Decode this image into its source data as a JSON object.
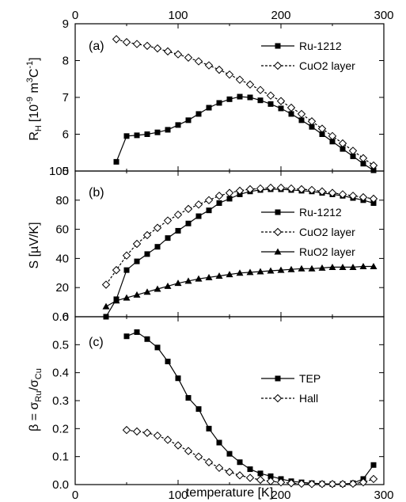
{
  "chart_data": [
    {
      "type": "line",
      "panel_label": "(a)",
      "ylabel": "R_H [10^-9 m^3 C^-1]",
      "ylabel_parts": {
        "main": "R",
        "sub": "H",
        "bracket": "[10",
        "exp1": "-9",
        "mid": " m",
        "exp2": "3",
        "c": "C",
        "exp3": "-1",
        "close": "]"
      },
      "xlim": [
        0,
        300
      ],
      "ylim": [
        5,
        9
      ],
      "yticks": [
        "9",
        "8",
        "7",
        "6",
        "5"
      ],
      "top_xticks": [
        "0",
        "100",
        "200",
        "300"
      ],
      "legend_position": "top-right",
      "series": [
        {
          "name": "Ru-1212",
          "marker": "filled-square",
          "dash": "solid",
          "x": [
            40,
            50,
            60,
            70,
            80,
            90,
            100,
            110,
            120,
            130,
            140,
            150,
            160,
            170,
            180,
            190,
            200,
            210,
            220,
            230,
            240,
            250,
            260,
            270,
            280,
            290
          ],
          "y": [
            5.25,
            5.95,
            5.97,
            6.0,
            6.05,
            6.12,
            6.25,
            6.38,
            6.55,
            6.72,
            6.85,
            6.95,
            7.02,
            7.0,
            6.92,
            6.82,
            6.7,
            6.55,
            6.38,
            6.2,
            6.0,
            5.8,
            5.6,
            5.4,
            5.2,
            5.02
          ]
        },
        {
          "name": "CuO2 layer",
          "marker": "open-diamond",
          "dash": "dashed",
          "x": [
            40,
            50,
            60,
            70,
            80,
            90,
            100,
            110,
            120,
            130,
            140,
            150,
            160,
            170,
            180,
            190,
            200,
            210,
            220,
            230,
            240,
            250,
            260,
            270,
            280,
            290
          ],
          "y": [
            8.58,
            8.5,
            8.45,
            8.4,
            8.33,
            8.25,
            8.17,
            8.08,
            7.98,
            7.87,
            7.75,
            7.62,
            7.48,
            7.35,
            7.2,
            7.05,
            6.9,
            6.72,
            6.55,
            6.35,
            6.15,
            5.95,
            5.75,
            5.55,
            5.35,
            5.15
          ]
        }
      ]
    },
    {
      "type": "line",
      "panel_label": "(b)",
      "ylabel": "S [µV/K]",
      "ylabel_parts": {
        "main": "S  [µV/K]"
      },
      "xlim": [
        0,
        300
      ],
      "ylim": [
        0,
        100
      ],
      "yticks": [
        "80",
        "60",
        "40",
        "20",
        "0"
      ],
      "corner_tick_label": "100",
      "legend_position": "right",
      "series": [
        {
          "name": "Ru-1212",
          "marker": "filled-square",
          "dash": "solid",
          "x": [
            30,
            40,
            50,
            60,
            70,
            80,
            90,
            100,
            110,
            120,
            130,
            140,
            150,
            160,
            170,
            180,
            190,
            200,
            210,
            220,
            230,
            240,
            250,
            260,
            270,
            280,
            290
          ],
          "y": [
            0,
            12,
            32,
            38,
            43,
            48,
            54,
            59,
            64,
            69,
            73,
            78,
            81,
            84,
            86,
            87,
            87.5,
            87.5,
            87,
            86.5,
            86,
            85,
            84,
            83,
            81.5,
            80,
            78
          ]
        },
        {
          "name": "CuO2 layer",
          "marker": "open-diamond",
          "dash": "dashed",
          "x": [
            30,
            40,
            50,
            60,
            70,
            80,
            90,
            100,
            110,
            120,
            130,
            140,
            150,
            160,
            170,
            180,
            190,
            200,
            210,
            220,
            230,
            240,
            250,
            260,
            270,
            280,
            290
          ],
          "y": [
            22,
            32,
            42,
            50,
            56,
            61,
            66,
            70,
            74,
            77,
            80,
            83,
            85,
            86.5,
            87.5,
            88,
            88.5,
            88.5,
            88,
            87.5,
            87,
            86,
            85,
            84,
            83,
            82,
            81
          ]
        },
        {
          "name": "RuO2 layer",
          "marker": "filled-triangle",
          "dash": "solid",
          "x": [
            30,
            40,
            50,
            60,
            70,
            80,
            90,
            100,
            110,
            120,
            130,
            140,
            150,
            160,
            170,
            180,
            190,
            200,
            210,
            220,
            230,
            240,
            250,
            260,
            270,
            280,
            290
          ],
          "y": [
            7,
            11,
            13,
            15,
            17,
            19,
            21,
            23,
            24.5,
            26,
            27,
            28,
            29,
            30,
            30.5,
            31,
            31.5,
            32,
            32.5,
            33,
            33,
            33.5,
            34,
            34,
            34,
            34.5,
            34.5
          ]
        }
      ]
    },
    {
      "type": "line",
      "panel_label": "(c)",
      "ylabel": "β = σ_Ru/σ_Cu",
      "ylabel_parts": {
        "beta": "β = σ",
        "sub1": "Ru",
        "slash": "/σ",
        "sub2": "Cu"
      },
      "xlim": [
        0,
        300
      ],
      "ylim": [
        0,
        0.6
      ],
      "yticks": [
        "0.5",
        "0.4",
        "0.3",
        "0.2",
        "0.1",
        "0.0"
      ],
      "corner_tick_label": "0.6",
      "xlabel": "temperature [K]",
      "xticks": [
        "0",
        "100",
        "200",
        "300"
      ],
      "legend_position": "right",
      "series": [
        {
          "name": "TEP",
          "marker": "filled-square",
          "dash": "solid",
          "x": [
            50,
            60,
            70,
            80,
            90,
            100,
            110,
            120,
            130,
            140,
            150,
            160,
            170,
            180,
            190,
            200,
            210,
            220,
            230,
            240,
            250,
            260,
            270,
            280,
            290
          ],
          "y": [
            0.53,
            0.545,
            0.52,
            0.49,
            0.44,
            0.38,
            0.31,
            0.27,
            0.2,
            0.15,
            0.11,
            0.08,
            0.055,
            0.04,
            0.03,
            0.02,
            0.012,
            0.008,
            0.005,
            0.003,
            0.002,
            0.002,
            0.005,
            0.02,
            0.07
          ]
        },
        {
          "name": "Hall",
          "marker": "open-diamond",
          "dash": "dashed",
          "x": [
            50,
            60,
            70,
            80,
            90,
            100,
            110,
            120,
            130,
            140,
            150,
            160,
            170,
            180,
            190,
            200,
            210,
            220,
            230,
            240,
            250,
            260,
            270,
            280,
            290
          ],
          "y": [
            0.195,
            0.19,
            0.185,
            0.175,
            0.16,
            0.14,
            0.12,
            0.1,
            0.08,
            0.06,
            0.045,
            0.033,
            0.024,
            0.017,
            0.012,
            0.008,
            0.005,
            0.003,
            0.002,
            0.002,
            0.002,
            0.002,
            0.003,
            0.008,
            0.02
          ]
        }
      ]
    }
  ]
}
